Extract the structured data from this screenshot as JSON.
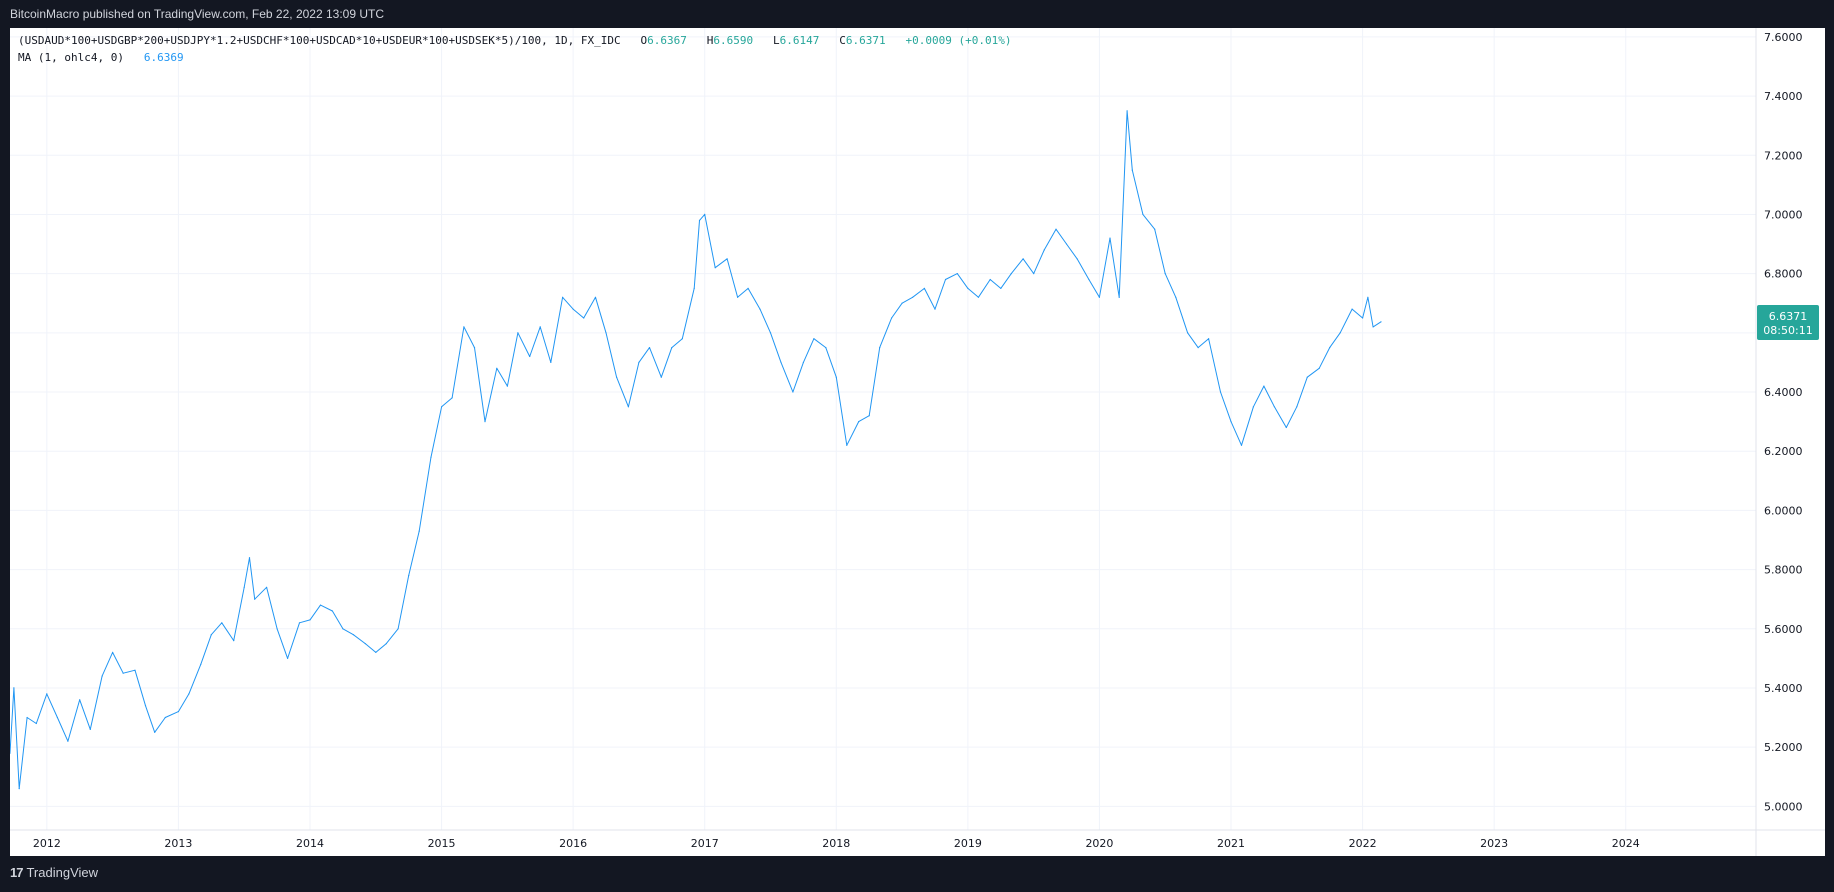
{
  "header": {
    "publisher": "BitcoinMacro published on TradingView.com, Feb 22, 2022 13:09 UTC"
  },
  "legend": {
    "symbol": "(USDAUD*100+USDGBP*200+USDJPY*1.2+USDCHF*100+USDCAD*10+USDEUR*100+USDSEK*5)/100, 1D, FX_IDC",
    "open_label": "O",
    "open": "6.6367",
    "high_label": "H",
    "high": "6.6590",
    "low_label": "L",
    "low": "6.6147",
    "close_label": "C",
    "close": "6.6371",
    "change": "+0.0009 (+0.01%)",
    "ma_label": "MA (1, ohlc4, 0)",
    "ma_value": "6.6369"
  },
  "price_tag": {
    "price": "6.6371",
    "countdown": "08:50:11"
  },
  "footer": {
    "brand": "TradingView"
  },
  "colors": {
    "line": "#2196f3",
    "up": "#26a69a",
    "grid": "#f0f3fa",
    "frame": "#131722"
  },
  "chart_data": {
    "type": "line",
    "x_axis_labels": [
      "2012",
      "2013",
      "2014",
      "2015",
      "2016",
      "2017",
      "2018",
      "2019",
      "2020",
      "2021",
      "2022",
      "2023",
      "2024"
    ],
    "y_axis_labels": [
      "5.0000",
      "5.2000",
      "5.4000",
      "5.6000",
      "5.8000",
      "6.0000",
      "6.2000",
      "6.4000",
      "6.6000",
      "6.8000",
      "7.0000",
      "7.2000",
      "7.4000",
      "7.6000"
    ],
    "ylim": [
      4.92,
      7.63
    ],
    "xlim": [
      2011.72,
      2024.99
    ],
    "grid": true,
    "series": [
      {
        "values": [
          [
            2011.72,
            5.18
          ],
          [
            2011.75,
            5.4
          ],
          [
            2011.79,
            5.06
          ],
          [
            2011.85,
            5.3
          ],
          [
            2011.92,
            5.28
          ],
          [
            2012.0,
            5.38
          ],
          [
            2012.08,
            5.3
          ],
          [
            2012.16,
            5.22
          ],
          [
            2012.25,
            5.36
          ],
          [
            2012.33,
            5.26
          ],
          [
            2012.42,
            5.44
          ],
          [
            2012.5,
            5.52
          ],
          [
            2012.58,
            5.45
          ],
          [
            2012.67,
            5.46
          ],
          [
            2012.75,
            5.34
          ],
          [
            2012.82,
            5.25
          ],
          [
            2012.9,
            5.3
          ],
          [
            2013.0,
            5.32
          ],
          [
            2013.08,
            5.38
          ],
          [
            2013.17,
            5.48
          ],
          [
            2013.25,
            5.58
          ],
          [
            2013.33,
            5.62
          ],
          [
            2013.42,
            5.56
          ],
          [
            2013.5,
            5.74
          ],
          [
            2013.54,
            5.84
          ],
          [
            2013.58,
            5.7
          ],
          [
            2013.67,
            5.74
          ],
          [
            2013.75,
            5.6
          ],
          [
            2013.83,
            5.5
          ],
          [
            2013.92,
            5.62
          ],
          [
            2014.0,
            5.63
          ],
          [
            2014.08,
            5.68
          ],
          [
            2014.17,
            5.66
          ],
          [
            2014.25,
            5.6
          ],
          [
            2014.33,
            5.58
          ],
          [
            2014.42,
            5.55
          ],
          [
            2014.5,
            5.52
          ],
          [
            2014.58,
            5.55
          ],
          [
            2014.67,
            5.6
          ],
          [
            2014.75,
            5.78
          ],
          [
            2014.83,
            5.93
          ],
          [
            2014.92,
            6.18
          ],
          [
            2015.0,
            6.35
          ],
          [
            2015.08,
            6.38
          ],
          [
            2015.17,
            6.62
          ],
          [
            2015.25,
            6.55
          ],
          [
            2015.33,
            6.3
          ],
          [
            2015.42,
            6.48
          ],
          [
            2015.5,
            6.42
          ],
          [
            2015.58,
            6.6
          ],
          [
            2015.67,
            6.52
          ],
          [
            2015.75,
            6.62
          ],
          [
            2015.83,
            6.5
          ],
          [
            2015.92,
            6.72
          ],
          [
            2016.0,
            6.68
          ],
          [
            2016.08,
            6.65
          ],
          [
            2016.17,
            6.72
          ],
          [
            2016.25,
            6.6
          ],
          [
            2016.33,
            6.45
          ],
          [
            2016.42,
            6.35
          ],
          [
            2016.5,
            6.5
          ],
          [
            2016.58,
            6.55
          ],
          [
            2016.67,
            6.45
          ],
          [
            2016.75,
            6.55
          ],
          [
            2016.83,
            6.58
          ],
          [
            2016.92,
            6.75
          ],
          [
            2016.96,
            6.98
          ],
          [
            2017.0,
            7.0
          ],
          [
            2017.08,
            6.82
          ],
          [
            2017.17,
            6.85
          ],
          [
            2017.25,
            6.72
          ],
          [
            2017.33,
            6.75
          ],
          [
            2017.42,
            6.68
          ],
          [
            2017.5,
            6.6
          ],
          [
            2017.58,
            6.5
          ],
          [
            2017.67,
            6.4
          ],
          [
            2017.75,
            6.5
          ],
          [
            2017.83,
            6.58
          ],
          [
            2017.92,
            6.55
          ],
          [
            2018.0,
            6.45
          ],
          [
            2018.08,
            6.22
          ],
          [
            2018.17,
            6.3
          ],
          [
            2018.25,
            6.32
          ],
          [
            2018.33,
            6.55
          ],
          [
            2018.42,
            6.65
          ],
          [
            2018.5,
            6.7
          ],
          [
            2018.58,
            6.72
          ],
          [
            2018.67,
            6.75
          ],
          [
            2018.75,
            6.68
          ],
          [
            2018.83,
            6.78
          ],
          [
            2018.92,
            6.8
          ],
          [
            2019.0,
            6.75
          ],
          [
            2019.08,
            6.72
          ],
          [
            2019.17,
            6.78
          ],
          [
            2019.25,
            6.75
          ],
          [
            2019.33,
            6.8
          ],
          [
            2019.42,
            6.85
          ],
          [
            2019.5,
            6.8
          ],
          [
            2019.58,
            6.88
          ],
          [
            2019.67,
            6.95
          ],
          [
            2019.75,
            6.9
          ],
          [
            2019.83,
            6.85
          ],
          [
            2019.92,
            6.78
          ],
          [
            2020.0,
            6.72
          ],
          [
            2020.08,
            6.92
          ],
          [
            2020.15,
            6.72
          ],
          [
            2020.21,
            7.35
          ],
          [
            2020.25,
            7.15
          ],
          [
            2020.33,
            7.0
          ],
          [
            2020.42,
            6.95
          ],
          [
            2020.5,
            6.8
          ],
          [
            2020.58,
            6.72
          ],
          [
            2020.67,
            6.6
          ],
          [
            2020.75,
            6.55
          ],
          [
            2020.83,
            6.58
          ],
          [
            2020.92,
            6.4
          ],
          [
            2021.0,
            6.3
          ],
          [
            2021.08,
            6.22
          ],
          [
            2021.17,
            6.35
          ],
          [
            2021.25,
            6.42
          ],
          [
            2021.33,
            6.35
          ],
          [
            2021.42,
            6.28
          ],
          [
            2021.5,
            6.35
          ],
          [
            2021.58,
            6.45
          ],
          [
            2021.67,
            6.48
          ],
          [
            2021.75,
            6.55
          ],
          [
            2021.83,
            6.6
          ],
          [
            2021.92,
            6.68
          ],
          [
            2022.0,
            6.65
          ],
          [
            2022.04,
            6.72
          ],
          [
            2022.08,
            6.62
          ],
          [
            2022.14,
            6.6371
          ]
        ]
      }
    ]
  }
}
